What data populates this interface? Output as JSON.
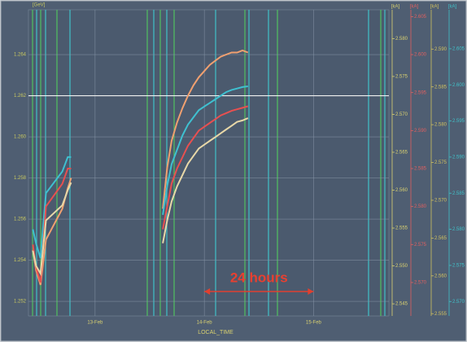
{
  "chart_data": {
    "type": "line",
    "x_label": "LOCAL_TIME",
    "annotation": "24 hours",
    "annotation_span": [
      14.0,
      15.0
    ],
    "xlim": [
      12.39,
      15.69
    ],
    "xticks": [
      {
        "value": 13,
        "label": "13-Feb"
      },
      {
        "value": 14,
        "label": "14-Feb"
      },
      {
        "value": 15,
        "label": "15-Feb"
      }
    ],
    "grid": true,
    "reference_line": 1.262,
    "y_unit": "[GeV]",
    "y_color": "#c8c860",
    "ylim": [
      1.25129,
      1.26618
    ],
    "yticks": [
      1.252,
      1.254,
      1.256,
      1.258,
      {
        "value": 1.26,
        "label": "1.260"
      },
      1.262,
      1.264
    ],
    "y2_unit": "[kA]",
    "y2_color": "#d8d070",
    "y2lim": [
      2.5434,
      2.5838
    ],
    "y2ticks": [
      {
        "value": 2.58,
        "label": "2.580"
      },
      2.575,
      {
        "value": 2.57,
        "label": "2.570"
      },
      2.565,
      {
        "value": 2.56,
        "label": "2.560"
      },
      2.555,
      {
        "value": 2.55,
        "label": "2.550"
      },
      2.545
    ],
    "y3_unit": "[kA]",
    "y3_color": "#e06060",
    "y3lim": [
      2.5656,
      2.6059
    ],
    "y3ticks": [
      2.605,
      {
        "value": 2.6,
        "label": "2.600"
      },
      2.595,
      {
        "value": 2.59,
        "label": "2.590"
      },
      2.585,
      {
        "value": 2.58,
        "label": "2.580"
      },
      2.575,
      {
        "value": 2.57,
        "label": "2.570"
      }
    ],
    "y4_unit": "[kA]",
    "y4_color": "#d0c060",
    "y4lim": [
      2.5547,
      2.5952
    ],
    "y4ticks": [
      {
        "value": 2.59,
        "label": "2.590"
      },
      2.585,
      {
        "value": 2.58,
        "label": "2.580"
      },
      2.575,
      {
        "value": 2.57,
        "label": "2.570"
      },
      2.565,
      {
        "value": 2.56,
        "label": "2.560"
      },
      2.555
    ],
    "y5_unit": "[kA]",
    "y5_color": "#40c0c8",
    "y5lim": [
      2.568,
      2.6104
    ],
    "y5ticks": [
      2.605,
      {
        "value": 2.6,
        "label": "2.600"
      },
      2.595,
      {
        "value": 2.59,
        "label": "2.590"
      },
      2.585,
      {
        "value": 2.58,
        "label": "2.580"
      },
      2.575,
      {
        "value": 2.57,
        "label": "2.570"
      }
    ],
    "x": [
      12.43,
      12.46,
      12.5,
      12.55,
      12.7,
      12.75,
      12.78,
      13.3,
      13.62,
      13.66,
      13.7,
      13.75,
      13.8,
      13.85,
      13.9,
      13.95,
      14.0,
      14.05,
      14.1,
      14.15,
      14.2,
      14.25,
      14.3,
      14.35,
      14.4
    ],
    "series": [
      {
        "color": "#f0a070",
        "axis": "y",
        "values": [
          1.2545,
          1.2535,
          1.2528,
          1.255,
          1.2565,
          1.2575,
          1.258,
          null,
          1.2565,
          1.2585,
          1.2598,
          1.2607,
          1.2614,
          1.262,
          1.2625,
          1.2629,
          1.2632,
          1.2635,
          1.2637,
          1.2639,
          1.264,
          1.2641,
          1.2641,
          1.2642,
          1.2641
        ]
      },
      {
        "color": "#3fc0d0",
        "axis": "y5",
        "values": [
          2.58,
          2.578,
          2.576,
          2.585,
          2.588,
          2.59,
          2.59,
          null,
          2.582,
          2.586,
          2.589,
          2.591,
          2.593,
          2.5945,
          2.5955,
          2.5965,
          2.597,
          2.5975,
          2.598,
          2.5985,
          2.599,
          2.5993,
          2.5995,
          2.5997,
          2.5998
        ]
      },
      {
        "color": "#e85050",
        "axis": "y3",
        "values": [
          2.575,
          2.572,
          2.57,
          2.58,
          2.583,
          2.585,
          2.585,
          null,
          2.577,
          2.58,
          2.583,
          2.585,
          2.5865,
          2.588,
          2.589,
          2.59,
          2.5905,
          2.591,
          2.5915,
          2.592,
          2.5923,
          2.5926,
          2.5928,
          2.593,
          2.5932
        ]
      },
      {
        "color": "#e8d8a8",
        "axis": "y2",
        "values": [
          2.552,
          2.55,
          2.549,
          2.556,
          2.558,
          2.56,
          2.561,
          null,
          2.553,
          2.556,
          2.5585,
          2.5605,
          2.562,
          2.5635,
          2.5645,
          2.5655,
          2.566,
          2.5665,
          2.567,
          2.5675,
          2.568,
          2.5685,
          2.569,
          2.5692,
          2.5695
        ]
      }
    ]
  }
}
